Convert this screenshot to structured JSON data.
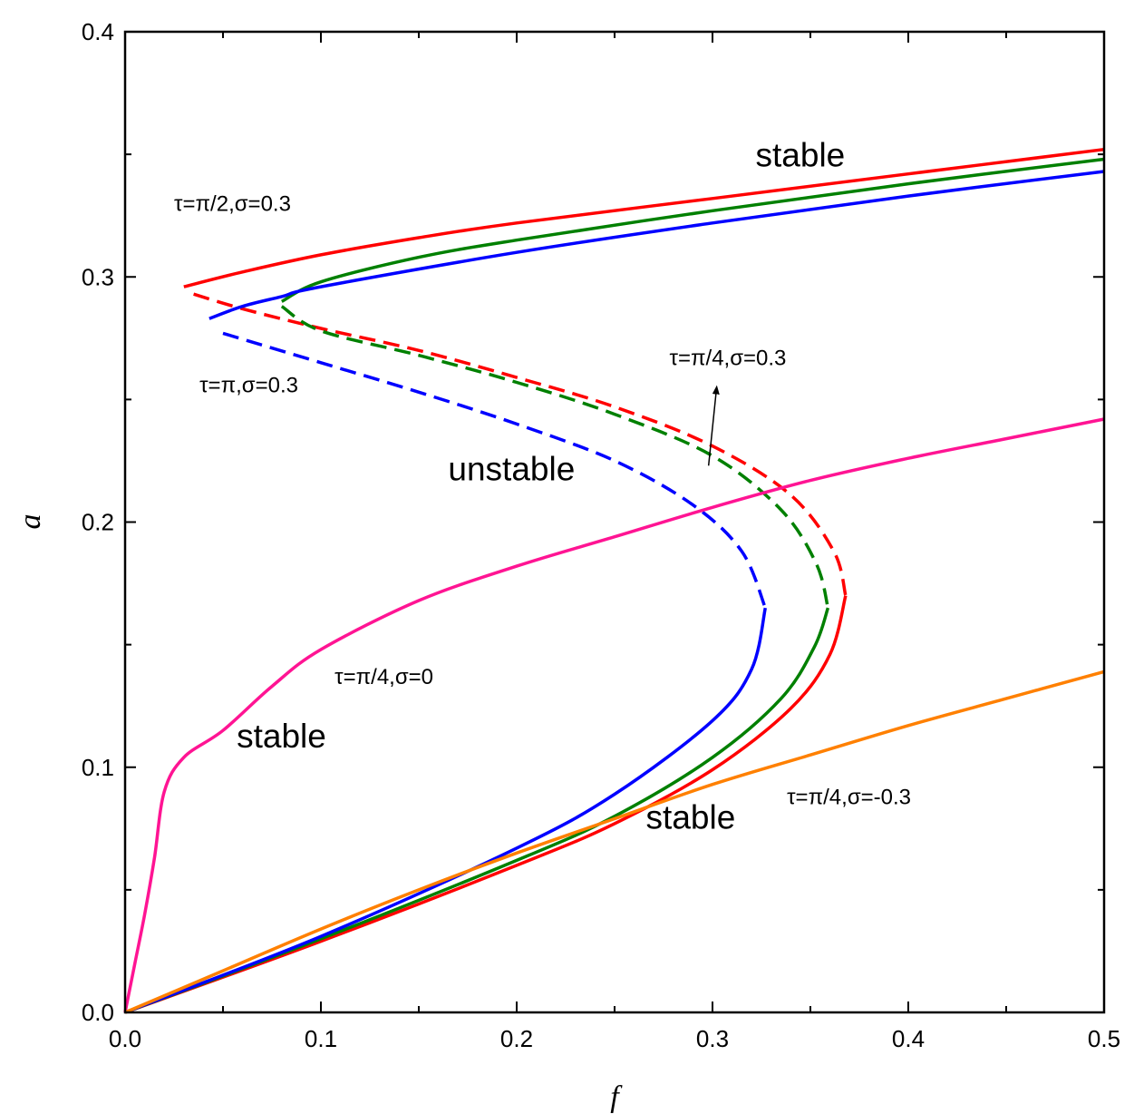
{
  "chart_data": {
    "type": "line",
    "title": "",
    "xlabel": "f",
    "ylabel": "a",
    "xlim": [
      0.0,
      0.5
    ],
    "ylim": [
      0.0,
      0.4
    ],
    "xticks": [
      "0.0",
      "0.1",
      "0.2",
      "0.3",
      "0.4",
      "0.5"
    ],
    "yticks": [
      "0.0",
      "0.1",
      "0.2",
      "0.3",
      "0.4"
    ],
    "grid": false,
    "series": [
      {
        "color": "#ff0000",
        "stable_upper": [
          [
            0.03,
            0.296
          ],
          [
            0.06,
            0.302
          ],
          [
            0.1,
            0.309
          ],
          [
            0.15,
            0.316
          ],
          [
            0.2,
            0.322
          ],
          [
            0.3,
            0.332
          ],
          [
            0.4,
            0.342
          ],
          [
            0.5,
            0.352
          ]
        ],
        "unstable": [
          [
            0.035,
            0.293
          ],
          [
            0.06,
            0.287
          ],
          [
            0.1,
            0.279
          ],
          [
            0.15,
            0.27
          ],
          [
            0.2,
            0.259
          ],
          [
            0.25,
            0.247
          ],
          [
            0.3,
            0.231
          ],
          [
            0.34,
            0.211
          ],
          [
            0.362,
            0.188
          ],
          [
            0.368,
            0.17
          ]
        ],
        "stable_lower": [
          [
            0.0,
            0.0
          ],
          [
            0.1,
            0.029
          ],
          [
            0.2,
            0.06
          ],
          [
            0.25,
            0.077
          ],
          [
            0.3,
            0.099
          ],
          [
            0.34,
            0.124
          ],
          [
            0.36,
            0.146
          ],
          [
            0.368,
            0.17
          ]
        ]
      },
      {
        "color": "#008000",
        "stable_upper": [
          [
            0.08,
            0.29
          ],
          [
            0.1,
            0.298
          ],
          [
            0.15,
            0.308
          ],
          [
            0.2,
            0.315
          ],
          [
            0.3,
            0.327
          ],
          [
            0.4,
            0.338
          ],
          [
            0.5,
            0.348
          ]
        ],
        "unstable": [
          [
            0.08,
            0.288
          ],
          [
            0.1,
            0.278
          ],
          [
            0.15,
            0.268
          ],
          [
            0.2,
            0.257
          ],
          [
            0.25,
            0.244
          ],
          [
            0.3,
            0.227
          ],
          [
            0.335,
            0.205
          ],
          [
            0.353,
            0.183
          ],
          [
            0.359,
            0.165
          ]
        ],
        "stable_lower": [
          [
            0.0,
            0.0
          ],
          [
            0.1,
            0.03
          ],
          [
            0.2,
            0.062
          ],
          [
            0.25,
            0.08
          ],
          [
            0.3,
            0.104
          ],
          [
            0.335,
            0.128
          ],
          [
            0.352,
            0.149
          ],
          [
            0.359,
            0.165
          ]
        ]
      },
      {
        "color": "#0000ff",
        "stable_upper": [
          [
            0.043,
            0.283
          ],
          [
            0.06,
            0.288
          ],
          [
            0.08,
            0.292
          ],
          [
            0.1,
            0.296
          ],
          [
            0.2,
            0.31
          ],
          [
            0.3,
            0.322
          ],
          [
            0.4,
            0.333
          ],
          [
            0.5,
            0.343
          ]
        ],
        "unstable": [
          [
            0.05,
            0.277
          ],
          [
            0.1,
            0.265
          ],
          [
            0.15,
            0.253
          ],
          [
            0.2,
            0.24
          ],
          [
            0.25,
            0.225
          ],
          [
            0.29,
            0.207
          ],
          [
            0.315,
            0.188
          ],
          [
            0.327,
            0.165
          ]
        ],
        "stable_lower": [
          [
            0.0,
            0.0
          ],
          [
            0.1,
            0.031
          ],
          [
            0.2,
            0.067
          ],
          [
            0.25,
            0.089
          ],
          [
            0.3,
            0.119
          ],
          [
            0.32,
            0.14
          ],
          [
            0.327,
            0.165
          ]
        ]
      },
      {
        "color": "#ff1493",
        "stable_upper": [
          [
            0.0,
            0.0
          ],
          [
            0.005,
            0.02
          ],
          [
            0.01,
            0.04
          ],
          [
            0.015,
            0.063
          ],
          [
            0.02,
            0.09
          ],
          [
            0.03,
            0.104
          ],
          [
            0.05,
            0.115
          ],
          [
            0.075,
            0.133
          ],
          [
            0.1,
            0.148
          ],
          [
            0.15,
            0.168
          ],
          [
            0.2,
            0.182
          ],
          [
            0.25,
            0.194
          ],
          [
            0.3,
            0.206
          ],
          [
            0.35,
            0.217
          ],
          [
            0.4,
            0.226
          ],
          [
            0.45,
            0.234
          ],
          [
            0.5,
            0.242
          ]
        ]
      },
      {
        "color": "#ff8000",
        "stable_upper": [
          [
            0.0,
            0.0
          ],
          [
            0.05,
            0.017
          ],
          [
            0.1,
            0.034
          ],
          [
            0.15,
            0.05
          ],
          [
            0.2,
            0.065
          ],
          [
            0.25,
            0.079
          ],
          [
            0.3,
            0.093
          ],
          [
            0.35,
            0.105
          ],
          [
            0.4,
            0.117
          ],
          [
            0.45,
            0.128
          ],
          [
            0.5,
            0.139
          ]
        ]
      }
    ],
    "annotations": [
      {
        "text": "stable",
        "x": 0.322,
        "y": 0.345
      },
      {
        "text": "τ=π/2,σ=0.3",
        "x": 0.025,
        "y": 0.327
      },
      {
        "text": "τ=π,σ=0.3",
        "x": 0.038,
        "y": 0.253
      },
      {
        "text": "τ=π/4,σ=0.3",
        "x": 0.278,
        "y": 0.264
      },
      {
        "text": "unstable",
        "x": 0.165,
        "y": 0.217
      },
      {
        "text": "τ=π/4,σ=0",
        "x": 0.107,
        "y": 0.134
      },
      {
        "text": "stable",
        "x": 0.057,
        "y": 0.108
      },
      {
        "text": "τ=π/4,σ=-0.3",
        "x": 0.338,
        "y": 0.085
      },
      {
        "text": "stable",
        "x": 0.266,
        "y": 0.075
      }
    ],
    "arrow": {
      "from": [
        0.298,
        0.223
      ],
      "to": [
        0.302,
        0.254
      ]
    }
  }
}
